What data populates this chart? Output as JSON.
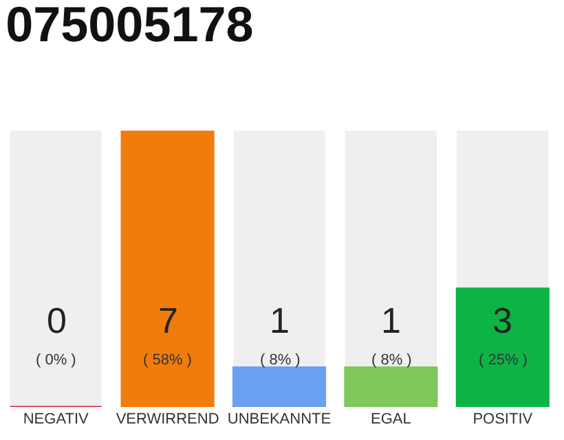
{
  "chart_data": {
    "type": "bar",
    "title": "075005178",
    "categories": [
      "NEGATIV",
      "VERWIRREND",
      "UNBEKANNTE",
      "EGAL",
      "POSITIV"
    ],
    "values": [
      0,
      7,
      1,
      1,
      3
    ],
    "colors": [
      "#e8203c",
      "#f07c0c",
      "#6aa0f0",
      "#7ec85c",
      "#0cb446"
    ],
    "value_labels": [
      "0\n( 0% )",
      "7\n( 58% )",
      "1\n( 8% )",
      "1\n( 8% )",
      "3\n( 25% )"
    ],
    "ylim": [
      0,
      7
    ],
    "tick_labels": "x",
    "grid": false,
    "legend": false
  }
}
